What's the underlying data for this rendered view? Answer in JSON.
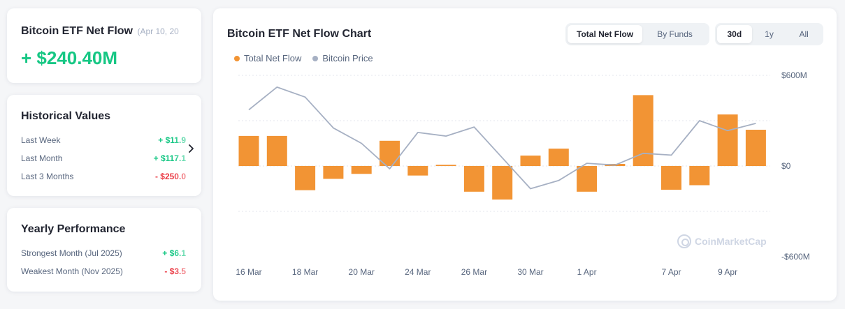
{
  "net_flow_card": {
    "title": "Bitcoin ETF Net Flow",
    "date": "(Apr 10, 20",
    "value": "+ $240.40M"
  },
  "historical": {
    "heading": "Historical Values",
    "rows": [
      {
        "label": "Last Week",
        "value": "+ $11.9",
        "sign": "pos"
      },
      {
        "label": "Last Month",
        "value": "+ $117.1",
        "sign": "pos"
      },
      {
        "label": "Last 3 Months",
        "value": "- $250.0",
        "sign": "neg"
      }
    ],
    "next_icon": "chevron-right-icon"
  },
  "yearly": {
    "heading": "Yearly Performance",
    "rows": [
      {
        "label": "Strongest Month",
        "sub": "(Jul 2025)",
        "value": "+ $6.1",
        "sign": "pos"
      },
      {
        "label": "Weakest Month",
        "sub": "(Nov 2025)",
        "value": "- $3.5",
        "sign": "neg"
      }
    ]
  },
  "chart_card": {
    "title": "Bitcoin ETF Net Flow Chart",
    "view_toggle": [
      {
        "label": "Total Net Flow",
        "active": true
      },
      {
        "label": "By Funds",
        "active": false
      }
    ],
    "range_toggle": [
      {
        "label": "30d",
        "active": true
      },
      {
        "label": "1y",
        "active": false
      },
      {
        "label": "All",
        "active": false
      }
    ],
    "watermark": "CoinMarketCap"
  },
  "colors": {
    "positive": "#16c784",
    "negative": "#ea3943",
    "bar": "#f29434",
    "price_line": "#a6b0c3"
  },
  "chart_data": {
    "type": "bar",
    "title": "Bitcoin ETF Net Flow Chart",
    "legend": [
      "Total Net Flow",
      "Bitcoin Price"
    ],
    "legend_position": "top-left",
    "y_axis_position": "right",
    "ylim": [
      -600,
      600
    ],
    "y_ticks": [
      "$600M",
      "$0",
      "-$600M"
    ],
    "y_tick_values": [
      600,
      0,
      -600
    ],
    "grid": true,
    "x_tick_labels": [
      {
        "label": "16 Mar",
        "index": 0
      },
      {
        "label": "18 Mar",
        "index": 2
      },
      {
        "label": "20 Mar",
        "index": 4
      },
      {
        "label": "24 Mar",
        "index": 6
      },
      {
        "label": "26 Mar",
        "index": 8
      },
      {
        "label": "30 Mar",
        "index": 10
      },
      {
        "label": "1 Apr",
        "index": 12
      },
      {
        "label": "7 Apr",
        "index": 15
      },
      {
        "label": "9 Apr",
        "index": 17
      }
    ],
    "series": [
      {
        "name": "Total Net Flow",
        "kind": "bar",
        "unit": "USD millions",
        "values": [
          199,
          199,
          -160,
          -85,
          -52,
          167,
          -63,
          8,
          -170,
          -222,
          69,
          115,
          -170,
          14,
          469,
          -157,
          -127,
          341,
          240
        ]
      },
      {
        "name": "Bitcoin Price",
        "kind": "line",
        "values": [
          0.62,
          0.87,
          0.76,
          0.42,
          0.25,
          -0.03,
          0.37,
          0.33,
          0.43,
          0.09,
          -0.25,
          -0.16,
          0.03,
          0.01,
          0.14,
          0.12,
          0.5,
          0.39,
          0.47
        ]
      }
    ]
  }
}
